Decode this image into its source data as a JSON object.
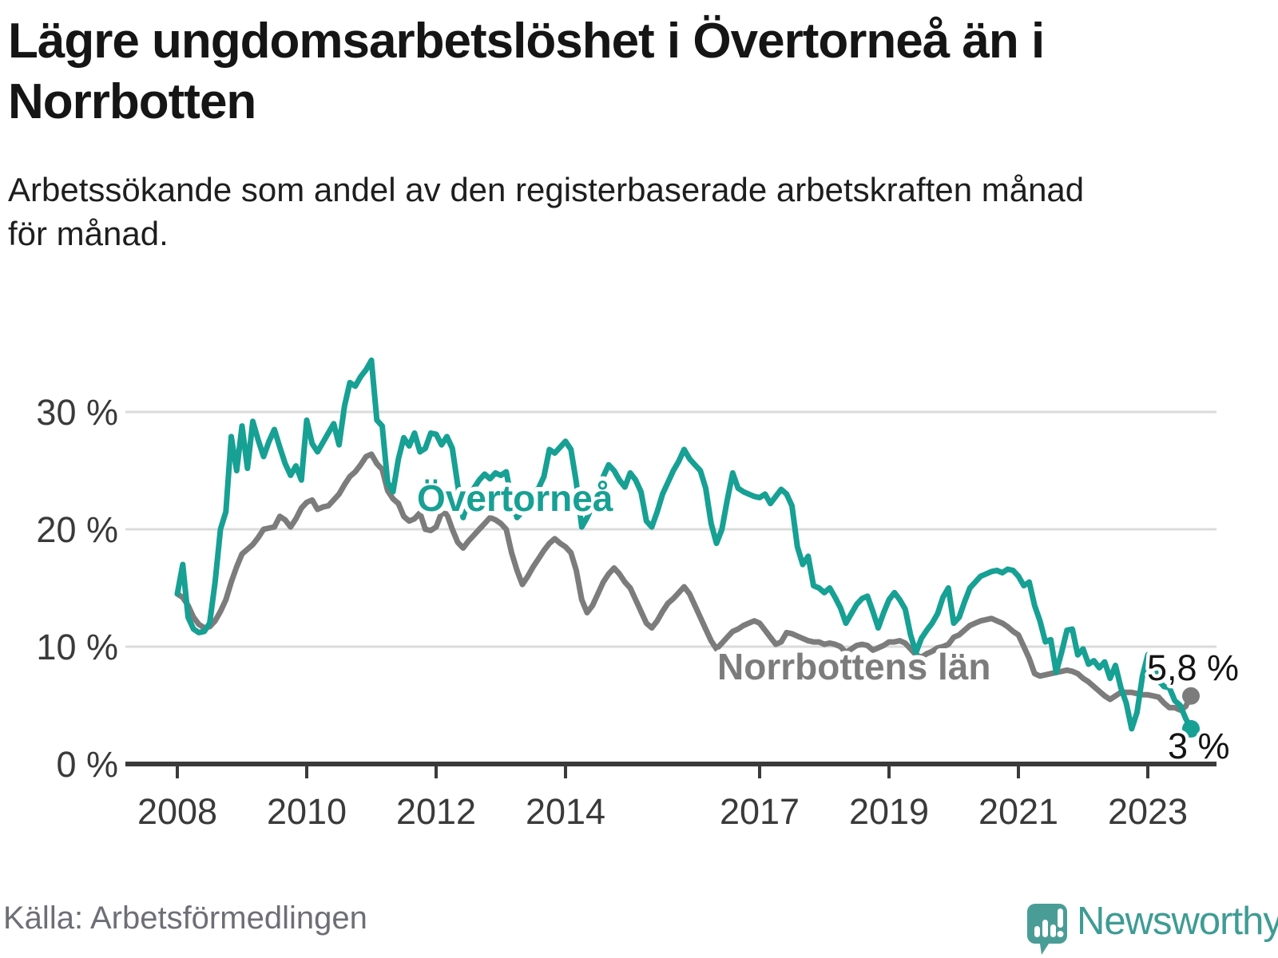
{
  "header": {
    "title": "Lägre ungdomsarbetslöshet i Övertorneå än i Norrbotten",
    "subtitle": "Arbetssökande som andel av den registerbaserade arbetskraften månad för månad."
  },
  "chart_data": {
    "type": "line",
    "title": "Lägre ungdomsarbetslöshet i Övertorneå än i Norrbotten",
    "subtitle": "Arbetssökande som andel av den registerbaserade arbetskraften månad för månad.",
    "unit": "%",
    "frequency": "monthly",
    "x_start": "2008-01",
    "x_end": "2023-09",
    "ylim": [
      0,
      36
    ],
    "grid": "horizontal",
    "legend_position": "inline-labels",
    "y_ticks": [
      {
        "value": 0,
        "label": "0 %"
      },
      {
        "value": 10,
        "label": "10 %"
      },
      {
        "value": 20,
        "label": "20 %"
      },
      {
        "value": 30,
        "label": "30 %"
      }
    ],
    "x_tick_years": [
      {
        "year": 2008,
        "label": "2008"
      },
      {
        "year": 2010,
        "label": "2010"
      },
      {
        "year": 2012,
        "label": "2012"
      },
      {
        "year": 2014,
        "label": "2014"
      },
      {
        "year": 2017,
        "label": "2017"
      },
      {
        "year": 2019,
        "label": "2019"
      },
      {
        "year": 2021,
        "label": "2021"
      },
      {
        "year": 2023,
        "label": "2023"
      }
    ],
    "series": [
      {
        "name": "Övertorneå",
        "color": "#17a094",
        "end_label": "3 %",
        "values": [
          14.5,
          17,
          12.5,
          11.5,
          11.2,
          11.3,
          12,
          15.5,
          20,
          21.5,
          27.9,
          25,
          28.8,
          25.2,
          29.2,
          27.6,
          26.2,
          27.5,
          28.5,
          27,
          25.6,
          24.6,
          25.4,
          24.2,
          29.3,
          27.3,
          26.6,
          27.4,
          28.2,
          29,
          27.2,
          30.5,
          32.5,
          32.2,
          33,
          33.6,
          34.4,
          29.3,
          28.8,
          24,
          23.2,
          26,
          27.8,
          27.1,
          28.2,
          26.6,
          26.9,
          28.2,
          28.1,
          27.2,
          27.9,
          26.9,
          23.8,
          21,
          22.5,
          23.5,
          24.2,
          24.7,
          24.3,
          24.8,
          24.6,
          24.9,
          22.5,
          21,
          21.5,
          22,
          23,
          23.5,
          24.5,
          26.8,
          26.5,
          27,
          27.5,
          26.8,
          24,
          20.2,
          21,
          22,
          23,
          24.5,
          25.5,
          25,
          24.2,
          23.6,
          24.8,
          24.2,
          23.2,
          20.7,
          20.2,
          21.5,
          23,
          24,
          25,
          25.8,
          26.8,
          26,
          25.5,
          25,
          23.5,
          20.5,
          18.8,
          20,
          22.5,
          24.8,
          23.5,
          23.2,
          23,
          22.8,
          22.7,
          23,
          22.2,
          22.8,
          23.4,
          23,
          22,
          18.5,
          17,
          17.7,
          15.2,
          15,
          14.6,
          15,
          14.2,
          13.3,
          12,
          12.8,
          13.6,
          14.1,
          14.3,
          13,
          11.6,
          12.9,
          14,
          14.6,
          14,
          13.2,
          11,
          9.5,
          10.7,
          11.4,
          12,
          12.8,
          14.2,
          15,
          12,
          12.5,
          13.8,
          15,
          15.5,
          16,
          16.2,
          16.4,
          16.5,
          16.3,
          16.6,
          16.5,
          16,
          15.2,
          15.5,
          13.5,
          12.2,
          10.4,
          10.6,
          7.8,
          9.5,
          11.4,
          11.5,
          9.3,
          9.8,
          8.5,
          8.8,
          8.2,
          8.7,
          7.3,
          8.4,
          6.5,
          5.2,
          3,
          4.4,
          7.5,
          9.3,
          9,
          7.1,
          6.6,
          6.5,
          5.4,
          5,
          3.9,
          3
        ]
      },
      {
        "name": "Norrbottens län",
        "color": "#7c7c7c",
        "end_label": "5,8 %",
        "values": [
          14.5,
          14.2,
          13.5,
          12.5,
          11.9,
          11.6,
          11.7,
          12.2,
          13,
          14,
          15.5,
          16.8,
          17.9,
          18.3,
          18.7,
          19.3,
          20,
          20.1,
          20.2,
          21.1,
          20.8,
          20.2,
          20.9,
          21.8,
          22.3,
          22.5,
          21.7,
          21.9,
          22,
          22.5,
          23,
          23.8,
          24.5,
          24.9,
          25.5,
          26.2,
          26.4,
          25.6,
          25.1,
          23.3,
          22.6,
          22.2,
          21.1,
          20.7,
          20.9,
          21.4,
          20,
          19.9,
          20.2,
          21.4,
          21.3,
          20,
          18.9,
          18.4,
          19,
          19.5,
          20,
          20.5,
          21,
          20.8,
          20.5,
          20,
          18,
          16.5,
          15.3,
          16,
          16.8,
          17.5,
          18.2,
          18.8,
          19.2,
          18.8,
          18.5,
          18,
          16.5,
          14,
          12.9,
          13.5,
          14.5,
          15.5,
          16.2,
          16.7,
          16.2,
          15.5,
          15,
          14,
          13,
          12,
          11.6,
          12.2,
          13,
          13.7,
          14.1,
          14.6,
          15.1,
          14.5,
          13.5,
          12.5,
          11.5,
          10.5,
          9.8,
          10.3,
          10.8,
          11.3,
          11.5,
          11.8,
          12,
          12.2,
          12,
          11.4,
          10.8,
          10.2,
          10.4,
          11.2,
          11.1,
          10.9,
          10.7,
          10.5,
          10.4,
          10.4,
          10.2,
          10.3,
          10.2,
          10,
          9.5,
          9.8,
          10.1,
          10.2,
          10.1,
          9.7,
          9.9,
          10.1,
          10.4,
          10.4,
          10.5,
          10.3,
          9.8,
          9.3,
          9.1,
          9.4,
          9.6,
          9.9,
          10,
          10.2,
          10.8,
          11,
          11.4,
          11.8,
          12,
          12.2,
          12.3,
          12.4,
          12.2,
          12,
          11.7,
          11.3,
          11,
          10,
          9,
          7.7,
          7.5,
          7.6,
          7.7,
          7.8,
          7.9,
          8,
          7.9,
          7.7,
          7.3,
          7,
          6.6,
          6.2,
          5.8,
          5.5,
          5.8,
          6.1,
          6.1,
          6.1,
          6,
          5.9,
          5.9,
          5.8,
          5.7,
          5.2,
          4.8,
          4.8,
          4.6,
          4.9,
          5.8
        ]
      }
    ]
  },
  "footer": {
    "source": "Källa: Arbetsförmedlingen",
    "logo_text": "Newsworthy"
  }
}
